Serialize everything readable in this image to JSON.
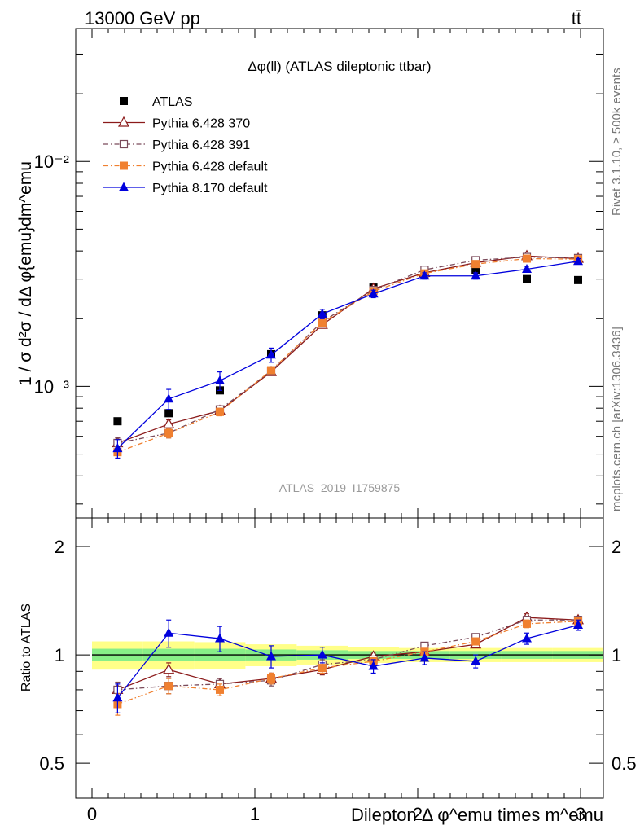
{
  "header": {
    "left": "13000 GeV pp",
    "right": "tt̄"
  },
  "side_text": {
    "rivet": "Rivet 3.1.10, ≥ 500k events",
    "mcplots": "mcplots.cern.ch [arXiv:1306.3436]"
  },
  "chart_data": [
    {
      "type": "line",
      "title": "Δφ(ll) (ATLAS dileptonic ttbar)",
      "watermark": "ATLAS_2019_I1759875",
      "ylabel": "1 / σ  d²σ / dΔ φ{emu}dm^emu",
      "xlabel": "",
      "log_y": true,
      "xlim": [
        -0.1,
        3.14
      ],
      "ylim": [
        0.00026,
        0.039
      ],
      "x_ticks": [
        0,
        1,
        2,
        3
      ],
      "x_tick_labels": [
        "",
        "",
        "",
        ""
      ],
      "y_tick_labels": [
        {
          "value": 0.01,
          "label": "10⁻²"
        },
        {
          "value": 0.001,
          "label": "10⁻³"
        }
      ],
      "x": [
        0.157,
        0.471,
        0.785,
        1.1,
        1.414,
        1.728,
        2.042,
        2.356,
        2.67,
        2.985
      ],
      "series": [
        {
          "name": "ATLAS",
          "color": "#000000",
          "marker": "filled-square",
          "line": "none",
          "values": [
            0.0007,
            0.00076,
            0.00096,
            0.00139,
            0.00207,
            0.00275,
            0.00312,
            0.0033,
            0.003,
            0.00297
          ],
          "errors": [
            2e-05,
            2e-05,
            3e-05,
            4e-05,
            5e-05,
            6e-05,
            7e-05,
            7e-05,
            7e-05,
            7e-05
          ]
        },
        {
          "name": "Pythia 6.428 370",
          "color": "#8b1a1a",
          "marker": "open-triangle",
          "line": "solid",
          "values": [
            0.00056,
            0.00068,
            0.00078,
            0.00116,
            0.00188,
            0.00272,
            0.0032,
            0.00355,
            0.0038,
            0.0037
          ],
          "errors": [
            3e-05,
            3e-05,
            3e-05,
            4e-05,
            5e-05,
            6e-05,
            6e-05,
            7e-05,
            7e-05,
            7e-05
          ]
        },
        {
          "name": "Pythia 6.428 391",
          "color": "#7a4a5a",
          "marker": "open-square",
          "line": "dashdot",
          "values": [
            0.00056,
            0.00062,
            0.00079,
            0.00117,
            0.00194,
            0.00268,
            0.0033,
            0.00364,
            0.00376,
            0.00372
          ],
          "errors": [
            3e-05,
            3e-05,
            3e-05,
            4e-05,
            5e-05,
            6e-05,
            6e-05,
            7e-05,
            7e-05,
            7e-05
          ]
        },
        {
          "name": "Pythia 6.428 default",
          "color": "#f08030",
          "marker": "filled-square",
          "line": "dashdot",
          "values": [
            0.00051,
            0.00062,
            0.00077,
            0.00118,
            0.00192,
            0.00265,
            0.00318,
            0.0035,
            0.0037,
            0.00368
          ],
          "errors": [
            3e-05,
            3e-05,
            3e-05,
            4e-05,
            5e-05,
            6e-05,
            6e-05,
            7e-05,
            7e-05,
            7e-05
          ]
        },
        {
          "name": "Pythia 8.170 default",
          "color": "#0000dd",
          "marker": "filled-triangle",
          "line": "solid",
          "values": [
            0.00053,
            0.00088,
            0.00106,
            0.00138,
            0.0021,
            0.00258,
            0.0031,
            0.0031,
            0.00332,
            0.0036
          ],
          "errors": [
            5e-05,
            9e-05,
            0.0001,
            0.0001,
            0.0001,
            0.0001,
            0.0001,
            0.0001,
            0.0001,
            0.0001
          ]
        }
      ]
    },
    {
      "type": "line",
      "ylabel": "Ratio to ATLAS",
      "xlabel": "Dilepton Δ φ^emu times m^emu",
      "log_y": true,
      "xlim": [
        -0.1,
        3.14
      ],
      "ylim": [
        0.4,
        2.4
      ],
      "x_ticks": [
        0,
        1,
        2,
        3
      ],
      "x_tick_labels": [
        "0",
        "1",
        "2",
        "3"
      ],
      "y_tick_labels": [
        {
          "value": 2,
          "label": "2"
        },
        {
          "value": 1,
          "label": "1"
        },
        {
          "value": 0.5,
          "label": "0.5"
        }
      ],
      "band_green_halfwidth": [
        0.04,
        0.04,
        0.04,
        0.035,
        0.03,
        0.025,
        0.025,
        0.025,
        0.025,
        0.025
      ],
      "band_yellow_halfwidth": [
        0.09,
        0.09,
        0.085,
        0.07,
        0.06,
        0.05,
        0.045,
        0.045,
        0.045,
        0.045
      ],
      "x": [
        0.157,
        0.471,
        0.785,
        1.1,
        1.414,
        1.728,
        2.042,
        2.356,
        2.67,
        2.985
      ],
      "series": [
        {
          "name": "Pythia 6.428 370",
          "color": "#8b1a1a",
          "marker": "open-triangle",
          "line": "solid",
          "values": [
            0.8,
            0.91,
            0.83,
            0.86,
            0.91,
            0.99,
            1.02,
            1.07,
            1.27,
            1.25
          ],
          "errors": [
            0.04,
            0.04,
            0.03,
            0.03,
            0.03,
            0.02,
            0.02,
            0.02,
            0.03,
            0.03
          ]
        },
        {
          "name": "Pythia 6.428 391",
          "color": "#7a4a5a",
          "marker": "open-square",
          "line": "dashdot",
          "values": [
            0.8,
            0.82,
            0.83,
            0.85,
            0.94,
            0.97,
            1.06,
            1.12,
            1.25,
            1.25
          ],
          "errors": [
            0.04,
            0.04,
            0.03,
            0.03,
            0.03,
            0.02,
            0.02,
            0.02,
            0.03,
            0.03
          ]
        },
        {
          "name": "Pythia 6.428 default",
          "color": "#f08030",
          "marker": "filled-square",
          "line": "dashdot",
          "values": [
            0.73,
            0.82,
            0.8,
            0.86,
            0.92,
            0.96,
            1.02,
            1.09,
            1.22,
            1.24
          ],
          "errors": [
            0.05,
            0.04,
            0.03,
            0.03,
            0.03,
            0.02,
            0.02,
            0.02,
            0.03,
            0.03
          ]
        },
        {
          "name": "Pythia 8.170 default",
          "color": "#0000dd",
          "marker": "filled-triangle",
          "line": "solid",
          "values": [
            0.76,
            1.15,
            1.11,
            0.99,
            1.0,
            0.93,
            0.98,
            0.96,
            1.11,
            1.21
          ],
          "errors": [
            0.07,
            0.1,
            0.09,
            0.07,
            0.05,
            0.04,
            0.04,
            0.04,
            0.04,
            0.04
          ]
        }
      ]
    }
  ]
}
